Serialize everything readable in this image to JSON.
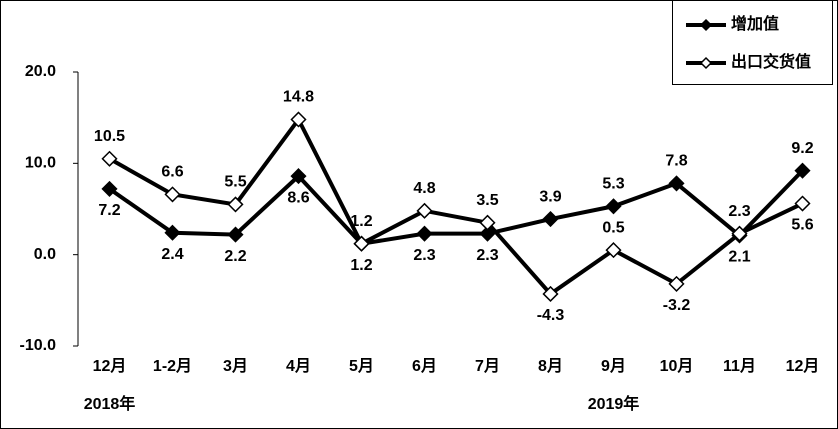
{
  "chart_data": {
    "type": "line",
    "categories": [
      "12月",
      "1-2月",
      "3月",
      "4月",
      "5月",
      "6月",
      "7月",
      "8月",
      "9月",
      "10月",
      "11月",
      "12月"
    ],
    "annotations": [
      "2018年",
      "2019年"
    ],
    "series": [
      {
        "name": "增加值",
        "color": "#000000",
        "marker": "filled-diamond",
        "values": [
          7.2,
          2.4,
          2.2,
          8.6,
          1.2,
          2.3,
          2.3,
          3.9,
          5.3,
          7.8,
          2.1,
          9.2
        ]
      },
      {
        "name": "出口交货值",
        "color": "#000000",
        "marker": "hollow-diamond",
        "values": [
          10.5,
          6.6,
          5.5,
          14.8,
          1.2,
          4.8,
          3.5,
          -4.3,
          0.5,
          -3.2,
          2.3,
          5.6
        ]
      }
    ],
    "ylim": [
      -10,
      20
    ],
    "yticks": [
      {
        "value": -10,
        "label": "-10.0"
      },
      {
        "value": 0,
        "label": "0.0"
      },
      {
        "value": 10,
        "label": "10.0"
      },
      {
        "value": 20,
        "label": "20.0"
      }
    ],
    "grid": false,
    "legend": "top-right"
  }
}
